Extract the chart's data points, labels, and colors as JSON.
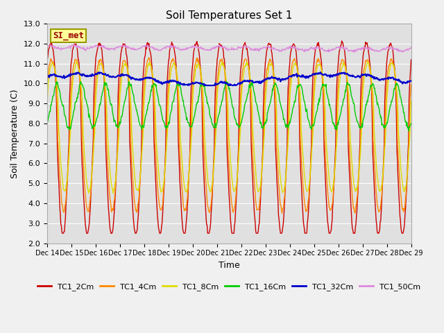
{
  "title": "Soil Temperatures Set 1",
  "xlabel": "Time",
  "ylabel": "Soil Temperature (C)",
  "ylim": [
    2.0,
    13.0
  ],
  "yticks": [
    2.0,
    3.0,
    4.0,
    5.0,
    6.0,
    7.0,
    8.0,
    9.0,
    10.0,
    11.0,
    12.0,
    13.0
  ],
  "background_color": "#f0f0f0",
  "plot_bg_color": "#e0e0e0",
  "series": [
    {
      "label": "TC1_2Cm",
      "color": "#cc0000",
      "lw": 1.0
    },
    {
      "label": "TC1_4Cm",
      "color": "#ff8800",
      "lw": 1.0
    },
    {
      "label": "TC1_8Cm",
      "color": "#dddd00",
      "lw": 1.0
    },
    {
      "label": "TC1_16Cm",
      "color": "#00cc00",
      "lw": 1.0
    },
    {
      "label": "TC1_32Cm",
      "color": "#0000cc",
      "lw": 1.5
    },
    {
      "label": "TC1_50Cm",
      "color": "#dd88dd",
      "lw": 1.0
    }
  ],
  "annotation_text": "SI_met",
  "annotation_color": "#990000",
  "annotation_bg": "#ffff99",
  "annotation_border": "#999900",
  "start_day": 14,
  "n_days": 15
}
